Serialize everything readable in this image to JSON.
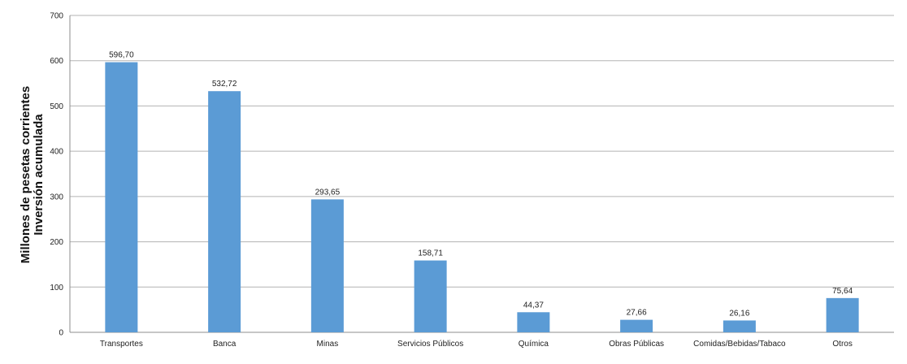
{
  "chart_data": {
    "type": "bar",
    "title": "",
    "xlabel": "",
    "ylabel_lines": [
      "Millones de pesetas corrientes",
      "Inversión acumulada"
    ],
    "ylim": [
      0,
      700
    ],
    "yticks": [
      0,
      100,
      200,
      300,
      400,
      500,
      600,
      700
    ],
    "categories": [
      "Transportes",
      "Banca",
      "Minas",
      "Servicios Públicos",
      "Química",
      "Obras Públicas",
      "Comidas/Bebidas/Tabaco",
      "Otros"
    ],
    "values": [
      596.7,
      532.72,
      293.65,
      158.71,
      44.37,
      27.66,
      26.16,
      75.64
    ],
    "value_labels": [
      "596,70",
      "532,72",
      "293,65",
      "158,71",
      "44,37",
      "27,66",
      "26,16",
      "75,64"
    ],
    "grid": true,
    "legend": "none",
    "colors": {
      "bar": "#5b9bd5",
      "grid": "#b3b3b3",
      "axis": "#8c8c8c"
    }
  }
}
